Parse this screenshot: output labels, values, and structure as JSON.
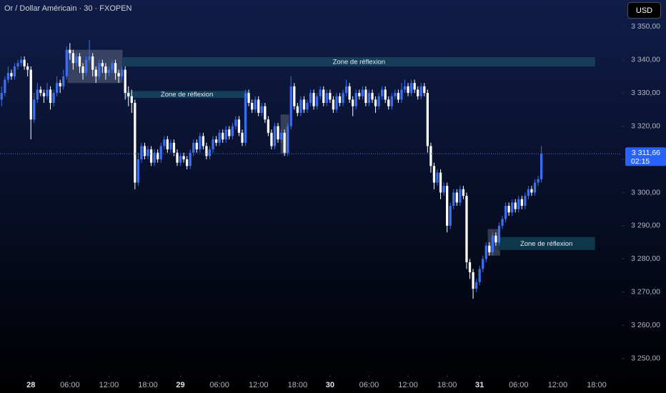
{
  "header": {
    "symbol": "Or / Dollar Américain · 30 · FXOPEN",
    "currency": "USD"
  },
  "chart_data": {
    "type": "candlestick",
    "up_color": "#3b6ff0",
    "down_color": "#ffffff",
    "xlim": [
      -0.5,
      190.7
    ],
    "ylim": [
      3245,
      3358
    ],
    "yticks": [
      {
        "value": 3250,
        "label": "3 250,00"
      },
      {
        "value": 3260,
        "label": "3 260,00"
      },
      {
        "value": 3270,
        "label": "3 270,00"
      },
      {
        "value": 3280,
        "label": "3 280,00"
      },
      {
        "value": 3290,
        "label": "3 290,00"
      },
      {
        "value": 3300,
        "label": "3 300,00"
      },
      {
        "value": 3310,
        "label": "3 310,00"
      },
      {
        "value": 3320,
        "label": "3 320,00"
      },
      {
        "value": 3330,
        "label": "3 330,00"
      },
      {
        "value": 3340,
        "label": "3 340,00"
      },
      {
        "value": 3350,
        "label": "3 350,00"
      }
    ],
    "xticks": [
      {
        "value": 9,
        "label": "28"
      },
      {
        "value": 21,
        "label": "06:00"
      },
      {
        "value": 33,
        "label": "12:00"
      },
      {
        "value": 45,
        "label": "18:00"
      },
      {
        "value": 55,
        "label": "29"
      },
      {
        "value": 67,
        "label": "06:00"
      },
      {
        "value": 79,
        "label": "12:00"
      },
      {
        "value": 91,
        "label": "18:00"
      },
      {
        "value": 101,
        "label": "30"
      },
      {
        "value": 113,
        "label": "06:00"
      },
      {
        "value": 125,
        "label": "12:00"
      },
      {
        "value": 137,
        "label": "18:00"
      },
      {
        "value": 147,
        "label": "31"
      },
      {
        "value": 159,
        "label": "06:00"
      },
      {
        "value": 171,
        "label": "12:00"
      },
      {
        "value": 183,
        "label": "18:00"
      }
    ],
    "candles": [
      [
        3328,
        3332,
        3326,
        3330
      ],
      [
        3330,
        3335,
        3329,
        3334
      ],
      [
        3334,
        3338,
        3333,
        3336
      ],
      [
        3336,
        3337,
        3334,
        3335
      ],
      [
        3335,
        3339,
        3334,
        3338
      ],
      [
        3338,
        3340,
        3337,
        3339
      ],
      [
        3339,
        3341,
        3338,
        3340
      ],
      [
        3340,
        3341,
        3337,
        3338
      ],
      [
        3338,
        3339,
        3335,
        3337
      ],
      [
        3337,
        3338,
        3316,
        3322
      ],
      [
        3322,
        3330,
        3321,
        3328
      ],
      [
        3328,
        3333,
        3327,
        3331
      ],
      [
        3331,
        3332,
        3329,
        3330
      ],
      [
        3330,
        3331,
        3327,
        3329
      ],
      [
        3329,
        3333,
        3328,
        3331
      ],
      [
        3331,
        3332,
        3325,
        3327
      ],
      [
        3327,
        3331,
        3326,
        3330
      ],
      [
        3330,
        3335,
        3329,
        3333
      ],
      [
        3333,
        3334,
        3330,
        3332
      ],
      [
        3332,
        3337,
        3331,
        3335
      ],
      [
        3335,
        3344,
        3334,
        3343
      ],
      [
        3343,
        3345,
        3340,
        3342
      ],
      [
        3342,
        3343,
        3337,
        3339
      ],
      [
        3339,
        3342,
        3338,
        3341
      ],
      [
        3341,
        3342,
        3336,
        3338
      ],
      [
        3338,
        3339,
        3334,
        3336
      ],
      [
        3336,
        3341,
        3335,
        3340
      ],
      [
        3340,
        3346,
        3339,
        3341
      ],
      [
        3341,
        3342,
        3335,
        3337
      ],
      [
        3337,
        3338,
        3333,
        3335
      ],
      [
        3335,
        3340,
        3334,
        3339
      ],
      [
        3339,
        3340,
        3336,
        3338
      ],
      [
        3338,
        3339,
        3334,
        3336
      ],
      [
        3336,
        3338,
        3335,
        3337
      ],
      [
        3337,
        3340,
        3336,
        3339
      ],
      [
        3339,
        3340,
        3334,
        3336
      ],
      [
        3336,
        3337,
        3333,
        3335
      ],
      [
        3335,
        3338,
        3334,
        3337
      ],
      [
        3337,
        3338,
        3328,
        3330
      ],
      [
        3330,
        3332,
        3326,
        3329
      ],
      [
        3329,
        3331,
        3324,
        3327
      ],
      [
        3327,
        3328,
        3301,
        3303
      ],
      [
        3303,
        3312,
        3302,
        3310
      ],
      [
        3310,
        3315,
        3309,
        3314
      ],
      [
        3314,
        3315,
        3310,
        3311
      ],
      [
        3311,
        3314,
        3310,
        3313
      ],
      [
        3313,
        3314,
        3308,
        3309
      ],
      [
        3309,
        3313,
        3308,
        3312
      ],
      [
        3312,
        3313,
        3309,
        3310
      ],
      [
        3310,
        3315,
        3309,
        3314
      ],
      [
        3314,
        3317,
        3313,
        3316
      ],
      [
        3316,
        3317,
        3312,
        3313
      ],
      [
        3313,
        3316,
        3312,
        3315
      ],
      [
        3315,
        3316,
        3311,
        3312
      ],
      [
        3312,
        3313,
        3308,
        3309
      ],
      [
        3309,
        3312,
        3308,
        3311
      ],
      [
        3311,
        3312,
        3309,
        3310
      ],
      [
        3310,
        3311,
        3307,
        3308
      ],
      [
        3308,
        3313,
        3307,
        3312
      ],
      [
        3312,
        3316,
        3311,
        3315
      ],
      [
        3315,
        3316,
        3312,
        3313
      ],
      [
        3313,
        3318,
        3312,
        3317
      ],
      [
        3317,
        3318,
        3313,
        3314
      ],
      [
        3314,
        3315,
        3310,
        3311
      ],
      [
        3311,
        3314,
        3310,
        3313
      ],
      [
        3313,
        3317,
        3312,
        3316
      ],
      [
        3316,
        3317,
        3314,
        3315
      ],
      [
        3315,
        3319,
        3314,
        3318
      ],
      [
        3318,
        3319,
        3315,
        3316
      ],
      [
        3316,
        3320,
        3315,
        3319
      ],
      [
        3319,
        3320,
        3316,
        3317
      ],
      [
        3317,
        3321,
        3316,
        3320
      ],
      [
        3320,
        3323,
        3319,
        3322
      ],
      [
        3322,
        3323,
        3317,
        3318
      ],
      [
        3318,
        3319,
        3314,
        3315
      ],
      [
        3315,
        3331,
        3314,
        3330
      ],
      [
        3330,
        3331,
        3326,
        3327
      ],
      [
        3327,
        3328,
        3324,
        3325
      ],
      [
        3325,
        3329,
        3324,
        3328
      ],
      [
        3328,
        3329,
        3323,
        3324
      ],
      [
        3324,
        3327,
        3323,
        3326
      ],
      [
        3326,
        3327,
        3321,
        3322
      ],
      [
        3322,
        3323,
        3317,
        3318
      ],
      [
        3318,
        3319,
        3313,
        3314
      ],
      [
        3314,
        3321,
        3313,
        3320
      ],
      [
        3320,
        3321,
        3315,
        3316
      ],
      [
        3316,
        3319,
        3315,
        3318
      ],
      [
        3318,
        3319,
        3311,
        3312
      ],
      [
        3312,
        3321,
        3311,
        3320
      ],
      [
        3320,
        3335,
        3319,
        3332
      ],
      [
        3332,
        3333,
        3325,
        3326
      ],
      [
        3326,
        3327,
        3323,
        3324
      ],
      [
        3324,
        3329,
        3323,
        3328
      ],
      [
        3328,
        3329,
        3324,
        3325
      ],
      [
        3325,
        3328,
        3324,
        3327
      ],
      [
        3327,
        3331,
        3326,
        3330
      ],
      [
        3330,
        3331,
        3325,
        3326
      ],
      [
        3326,
        3330,
        3325,
        3329
      ],
      [
        3329,
        3332,
        3328,
        3331
      ],
      [
        3331,
        3332,
        3326,
        3327
      ],
      [
        3327,
        3331,
        3326,
        3330
      ],
      [
        3330,
        3331,
        3327,
        3328
      ],
      [
        3328,
        3329,
        3324,
        3325
      ],
      [
        3325,
        3330,
        3324,
        3329
      ],
      [
        3329,
        3330,
        3326,
        3327
      ],
      [
        3327,
        3331,
        3326,
        3330
      ],
      [
        3330,
        3334,
        3329,
        3332
      ],
      [
        3332,
        3333,
        3327,
        3328
      ],
      [
        3328,
        3329,
        3323,
        3326
      ],
      [
        3326,
        3331,
        3325,
        3330
      ],
      [
        3330,
        3331,
        3328,
        3329
      ],
      [
        3329,
        3332,
        3328,
        3331
      ],
      [
        3331,
        3332,
        3326,
        3327
      ],
      [
        3327,
        3331,
        3326,
        3330
      ],
      [
        3330,
        3331,
        3327,
        3328
      ],
      [
        3328,
        3329,
        3324,
        3326
      ],
      [
        3326,
        3330,
        3325,
        3329
      ],
      [
        3329,
        3332,
        3328,
        3331
      ],
      [
        3331,
        3332,
        3327,
        3328
      ],
      [
        3328,
        3329,
        3325,
        3326
      ],
      [
        3326,
        3330,
        3325,
        3329
      ],
      [
        3329,
        3331,
        3328,
        3330
      ],
      [
        3330,
        3331,
        3327,
        3328
      ],
      [
        3328,
        3333,
        3327,
        3331
      ],
      [
        3331,
        3334,
        3330,
        3332
      ],
      [
        3332,
        3333,
        3329,
        3330
      ],
      [
        3330,
        3334,
        3329,
        3333
      ],
      [
        3333,
        3334,
        3330,
        3331
      ],
      [
        3331,
        3332,
        3328,
        3329
      ],
      [
        3329,
        3333,
        3328,
        3332
      ],
      [
        3332,
        3333,
        3329,
        3330
      ],
      [
        3330,
        3331,
        3312,
        3314
      ],
      [
        3314,
        3315,
        3306,
        3308
      ],
      [
        3308,
        3309,
        3301,
        3303
      ],
      [
        3303,
        3307,
        3302,
        3306
      ],
      [
        3306,
        3307,
        3298,
        3300
      ],
      [
        3300,
        3303,
        3299,
        3302
      ],
      [
        3302,
        3303,
        3288,
        3290
      ],
      [
        3290,
        3297,
        3289,
        3296
      ],
      [
        3296,
        3301,
        3295,
        3300
      ],
      [
        3300,
        3301,
        3296,
        3297
      ],
      [
        3297,
        3302,
        3296,
        3301
      ],
      [
        3301,
        3302,
        3298,
        3299
      ],
      [
        3299,
        3300,
        3277,
        3279
      ],
      [
        3279,
        3280,
        3274,
        3276
      ],
      [
        3276,
        3277,
        3268,
        3271
      ],
      [
        3271,
        3274,
        3270,
        3273
      ],
      [
        3273,
        3278,
        3272,
        3277
      ],
      [
        3277,
        3281,
        3276,
        3280
      ],
      [
        3280,
        3285,
        3279,
        3284
      ],
      [
        3284,
        3285,
        3281,
        3282
      ],
      [
        3282,
        3288,
        3281,
        3287
      ],
      [
        3287,
        3288,
        3284,
        3285
      ],
      [
        3285,
        3291,
        3284,
        3290
      ],
      [
        3290,
        3293,
        3289,
        3292
      ],
      [
        3292,
        3297,
        3291,
        3296
      ],
      [
        3296,
        3297,
        3293,
        3294
      ],
      [
        3294,
        3298,
        3293,
        3297
      ],
      [
        3297,
        3298,
        3294,
        3295
      ],
      [
        3295,
        3299,
        3294,
        3298
      ],
      [
        3298,
        3299,
        3295,
        3296
      ],
      [
        3296,
        3300,
        3295,
        3299
      ],
      [
        3299,
        3302,
        3298,
        3301
      ],
      [
        3301,
        3302,
        3299,
        3300
      ],
      [
        3300,
        3304,
        3299,
        3303
      ],
      [
        3303,
        3305,
        3302,
        3304
      ],
      [
        3304,
        3314,
        3303,
        3311.66
      ]
    ],
    "zones": [
      {
        "label": "Zone de réflexion",
        "x": [
          37.3,
          182.5
        ],
        "y": [
          3338,
          3340.8
        ]
      },
      {
        "label": "Zone de réflexion",
        "x": [
          38.1,
          75.9
        ],
        "y": [
          3328.5,
          3330.6
        ]
      },
      {
        "label": "Zone de réflexion",
        "x": [
          152.6,
          182.5
        ],
        "y": [
          3282.7,
          3286.6
        ]
      }
    ],
    "boxes": [
      {
        "x": [
          20.3,
          37.2
        ],
        "y": [
          3333,
          3343
        ]
      },
      {
        "x": [
          85.8,
          88.4
        ],
        "y": [
          3311.7,
          3323.5
        ]
      },
      {
        "x": [
          149.5,
          153.3
        ],
        "y": [
          3281,
          3289
        ]
      }
    ],
    "last_price": {
      "value": 3311.66,
      "label": "3 311,66"
    },
    "countdown": "02:15"
  }
}
